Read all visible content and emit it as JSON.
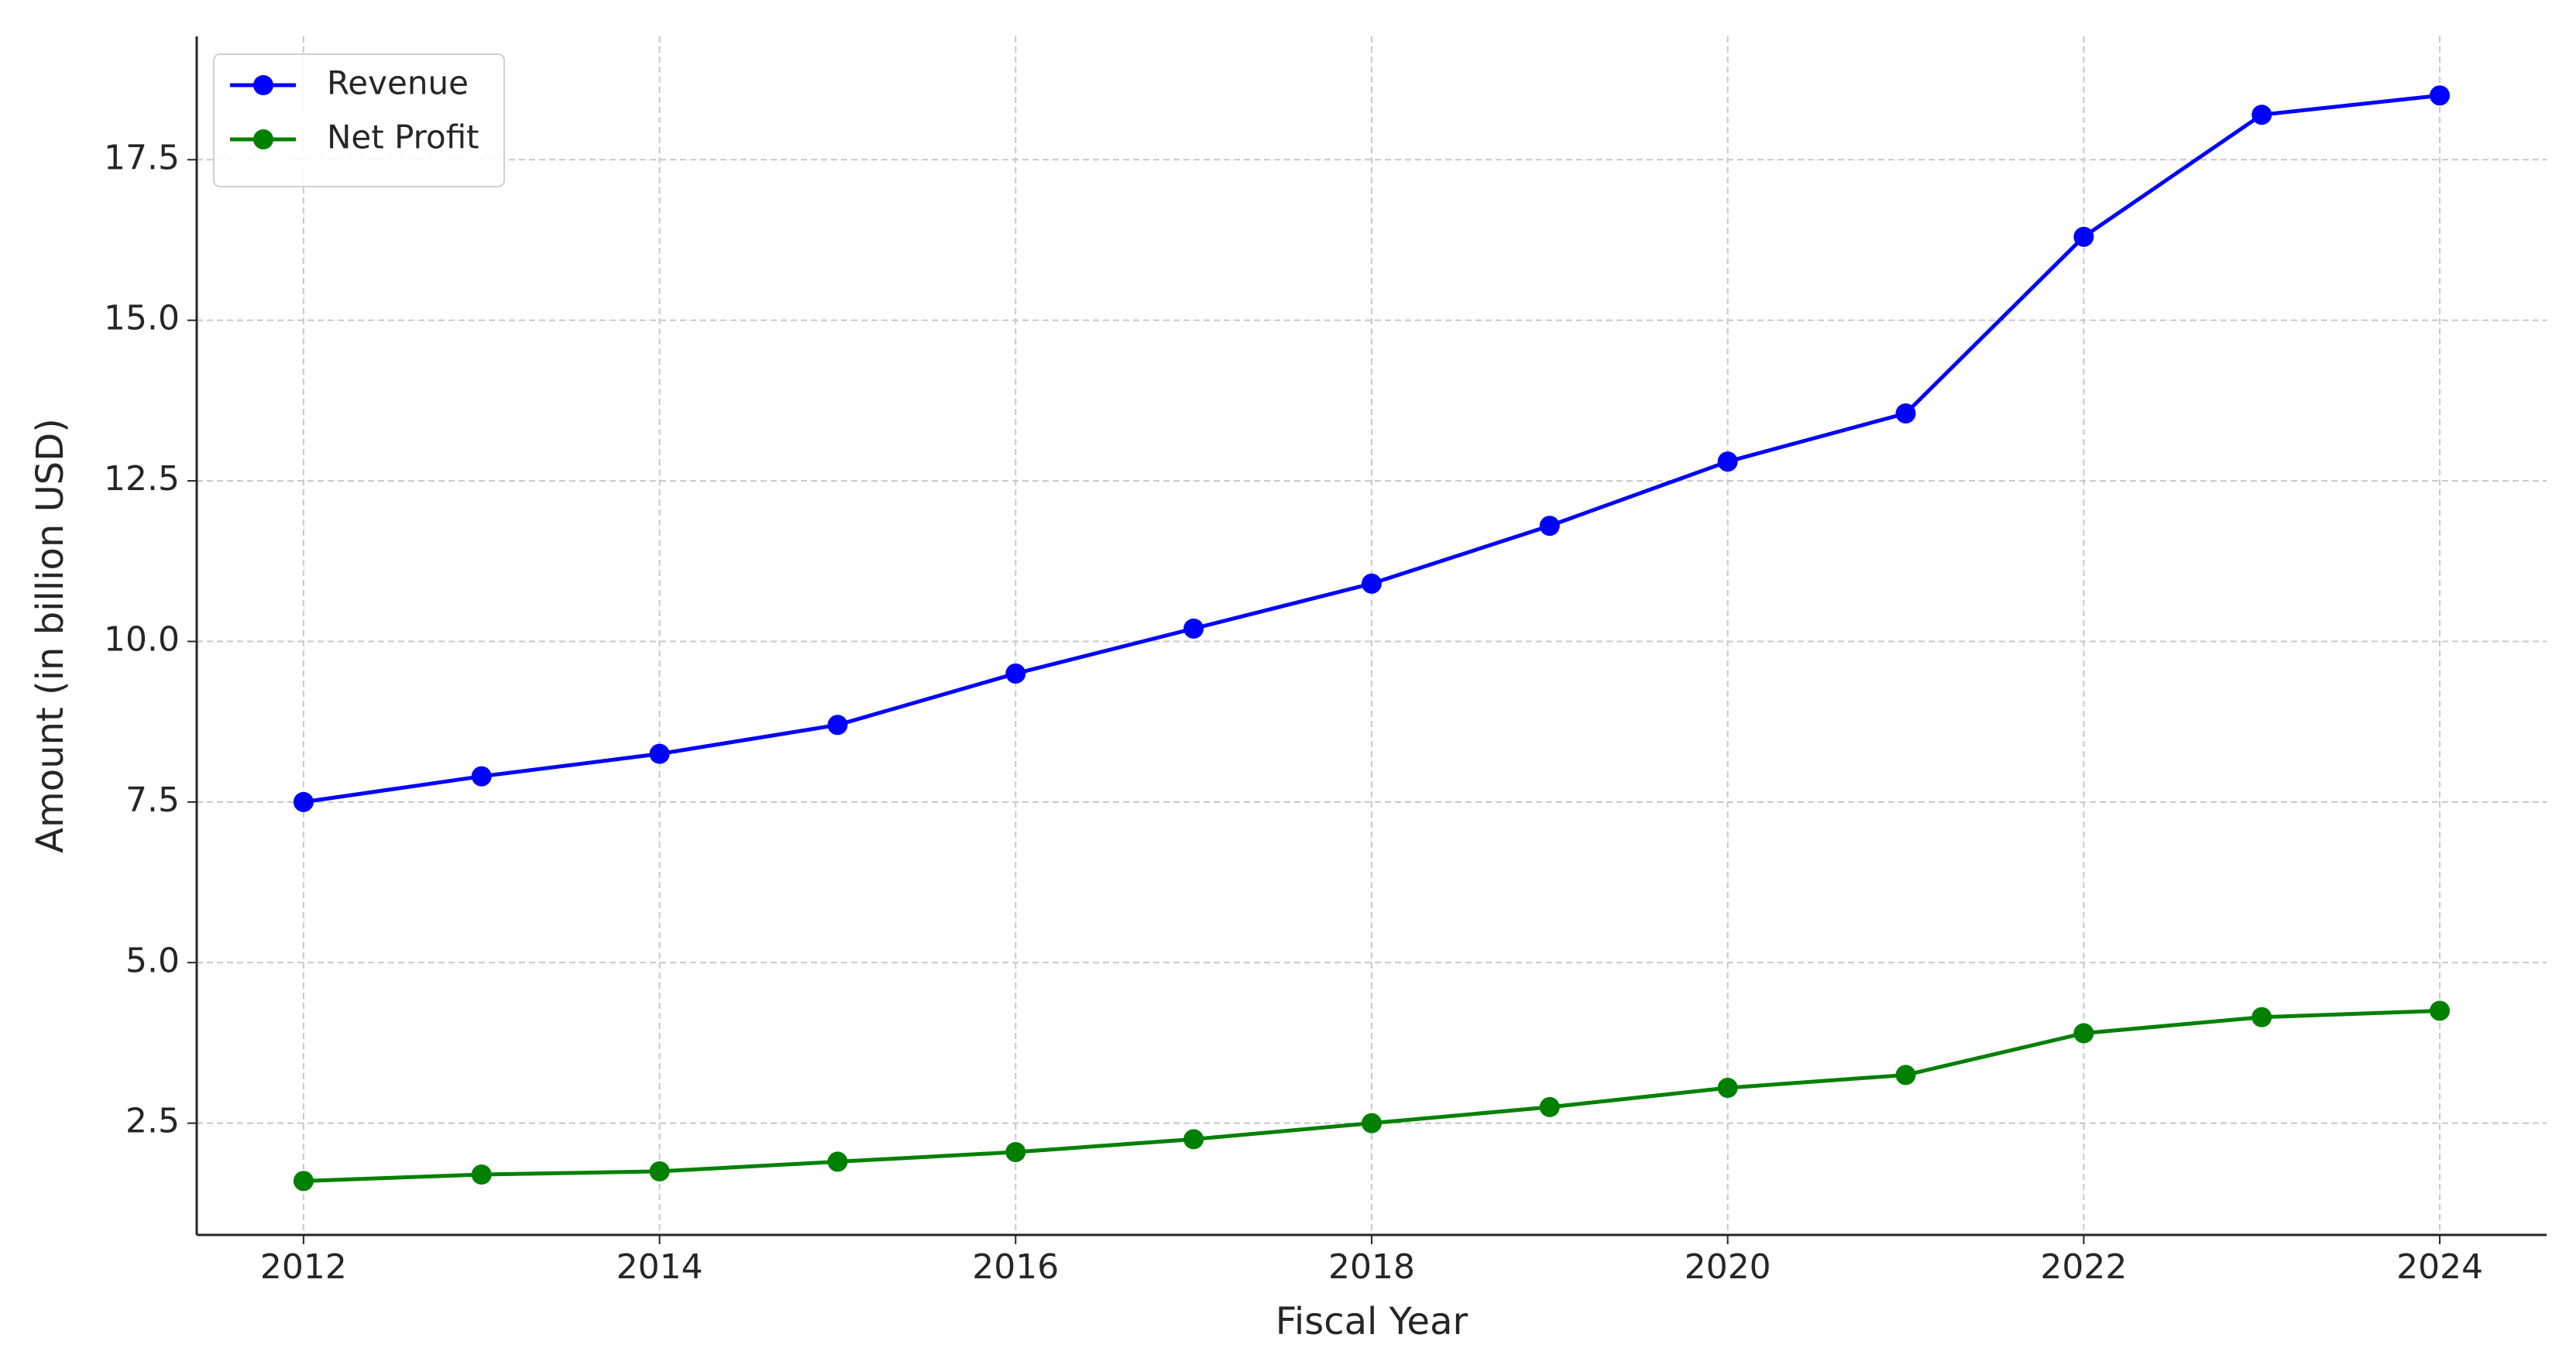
{
  "chart_data": {
    "type": "line",
    "xlabel": "Fiscal Year",
    "ylabel": "Amount (in billion USD)",
    "x": [
      2012,
      2013,
      2014,
      2015,
      2016,
      2017,
      2018,
      2019,
      2020,
      2021,
      2022,
      2023,
      2024
    ],
    "series": [
      {
        "name": "Revenue",
        "color": "#0000ff",
        "values": [
          7.5,
          7.9,
          8.25,
          8.7,
          9.5,
          10.2,
          10.9,
          11.8,
          12.8,
          13.55,
          16.3,
          18.2,
          18.5
        ]
      },
      {
        "name": "Net Profit",
        "color": "#008000",
        "values": [
          1.6,
          1.7,
          1.75,
          1.9,
          2.05,
          2.25,
          2.5,
          2.75,
          3.05,
          3.25,
          3.9,
          4.15,
          4.25
        ]
      }
    ],
    "xlim": [
      2011.4,
      2024.6
    ],
    "xticks": [
      2012,
      2014,
      2016,
      2018,
      2020,
      2022,
      2024
    ],
    "ylim": [
      0.76,
      19.42
    ],
    "yticks": [
      2.5,
      {
        "value": 5,
        "label": "5.0"
      },
      7.5,
      {
        "value": 10,
        "label": "10.0"
      },
      12.5,
      {
        "value": 15,
        "label": "15.0"
      },
      17.5
    ],
    "grid": true,
    "legend": "upper left"
  }
}
